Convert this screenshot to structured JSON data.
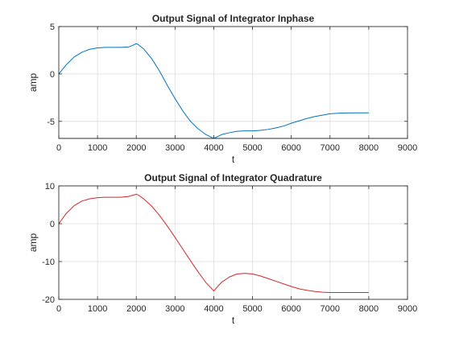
{
  "chart_data": [
    {
      "type": "line",
      "title": "Output Signal of Integrator Inphase",
      "xlabel": "t",
      "ylabel": "amp",
      "xlim": [
        0,
        9000
      ],
      "ylim": [
        -6.8,
        5
      ],
      "xticks": [
        0,
        1000,
        2000,
        3000,
        4000,
        5000,
        6000,
        7000,
        8000,
        9000
      ],
      "yticks": [
        -5,
        0,
        5
      ],
      "grid": true,
      "series": [
        {
          "color": "#0072BD",
          "x": [
            0,
            200,
            400,
            600,
            800,
            1000,
            1200,
            1400,
            1600,
            1800,
            1900,
            2000,
            2050,
            2200,
            2400,
            2600,
            2800,
            3000,
            3200,
            3400,
            3600,
            3800,
            3950,
            4000,
            4100,
            4200,
            4400,
            4600,
            4800,
            5000,
            5200,
            5400,
            5600,
            5800,
            6000,
            6200,
            6400,
            6600,
            6800,
            7000,
            7200,
            7400,
            7600,
            7800,
            8000
          ],
          "y": [
            0,
            1.0,
            1.8,
            2.3,
            2.6,
            2.75,
            2.8,
            2.8,
            2.8,
            2.85,
            3.0,
            3.2,
            3.1,
            2.6,
            1.6,
            0.3,
            -1.2,
            -2.6,
            -3.9,
            -5.0,
            -5.8,
            -6.4,
            -6.7,
            -6.8,
            -6.6,
            -6.4,
            -6.2,
            -6.05,
            -6.0,
            -6.0,
            -5.95,
            -5.85,
            -5.7,
            -5.5,
            -5.2,
            -4.95,
            -4.7,
            -4.5,
            -4.35,
            -4.2,
            -4.15,
            -4.12,
            -4.1,
            -4.1,
            -4.1
          ]
        }
      ]
    },
    {
      "type": "line",
      "title": "Output Signal of Integrator Quadrature",
      "xlabel": "t",
      "ylabel": "amp",
      "xlim": [
        0,
        9000
      ],
      "ylim": [
        -20,
        10
      ],
      "xticks": [
        0,
        1000,
        2000,
        3000,
        4000,
        5000,
        6000,
        7000,
        8000,
        9000
      ],
      "yticks": [
        -20,
        -10,
        0,
        10
      ],
      "grid": true,
      "series": [
        {
          "color": "#D62728",
          "x": [
            0,
            200,
            400,
            600,
            800,
            1000,
            1200,
            1400,
            1600,
            1800,
            1900,
            2000,
            2050,
            2200,
            2400,
            2600,
            2800,
            3000,
            3200,
            3400,
            3600,
            3800,
            3950,
            4000,
            4100,
            4200,
            4400,
            4600,
            4800,
            5000,
            5200,
            5400,
            5600,
            5800,
            6000,
            6200,
            6400,
            6600,
            6800,
            7000,
            7200,
            7400,
            7600,
            7800,
            8000
          ],
          "y": [
            0,
            2.8,
            4.8,
            6.0,
            6.6,
            6.9,
            7.0,
            7.0,
            7.0,
            7.2,
            7.5,
            7.8,
            7.6,
            6.5,
            4.6,
            2.2,
            -0.6,
            -3.6,
            -6.7,
            -9.8,
            -12.8,
            -15.6,
            -17.2,
            -17.8,
            -16.6,
            -15.5,
            -14.1,
            -13.3,
            -13.1,
            -13.3,
            -13.8,
            -14.5,
            -15.2,
            -15.9,
            -16.6,
            -17.2,
            -17.6,
            -17.9,
            -18.1,
            -18.2,
            -18.2,
            -18.2,
            -18.2,
            -18.2,
            -18.2
          ]
        }
      ]
    }
  ]
}
